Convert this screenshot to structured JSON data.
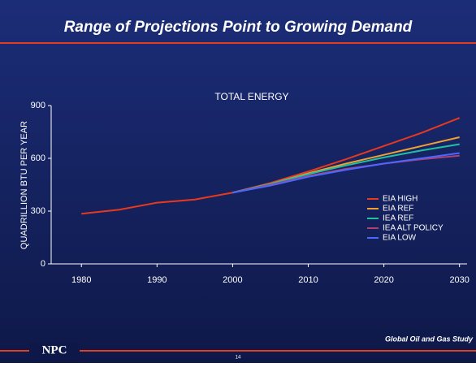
{
  "slide_title": "Range of Projections Point to Growing Demand",
  "footer_logo": "NPC",
  "footer_text": "Global Oil and Gas Study",
  "page_number": "14",
  "chart_data": {
    "type": "line",
    "title": "TOTAL ENERGY",
    "y_label": "QUADRILLION BTU PER YEAR",
    "x": [
      1980,
      1985,
      1990,
      1995,
      2000,
      2005,
      2010,
      2015,
      2020,
      2025,
      2030
    ],
    "series": [
      {
        "name": "EIA HIGH",
        "color": "#e8391e",
        "values": [
          285,
          308,
          348,
          366,
          405,
          460,
          525,
          595,
          670,
          745,
          830
        ]
      },
      {
        "name": "EIA REF",
        "color": "#f0a030",
        "values": [
          null,
          null,
          null,
          null,
          405,
          455,
          515,
          570,
          620,
          670,
          720
        ]
      },
      {
        "name": "IEA REF",
        "color": "#20c0a0",
        "values": [
          null,
          null,
          null,
          null,
          405,
          455,
          510,
          560,
          605,
          645,
          680
        ]
      },
      {
        "name": "IEA ALT POLICY",
        "color": "#b04070",
        "values": [
          null,
          null,
          null,
          null,
          405,
          450,
          500,
          540,
          570,
          595,
          615
        ]
      },
      {
        "name": "EIA LOW",
        "color": "#4a68ff",
        "values": [
          null,
          null,
          null,
          null,
          405,
          445,
          495,
          535,
          570,
          600,
          630
        ]
      }
    ],
    "xlim": [
      1976,
      2031
    ],
    "xticks": [
      1980,
      1990,
      2000,
      2010,
      2020,
      2030
    ],
    "ylim": [
      0,
      900
    ],
    "yticks": [
      0,
      300,
      600,
      900
    ],
    "grid": false,
    "legend": "right"
  }
}
